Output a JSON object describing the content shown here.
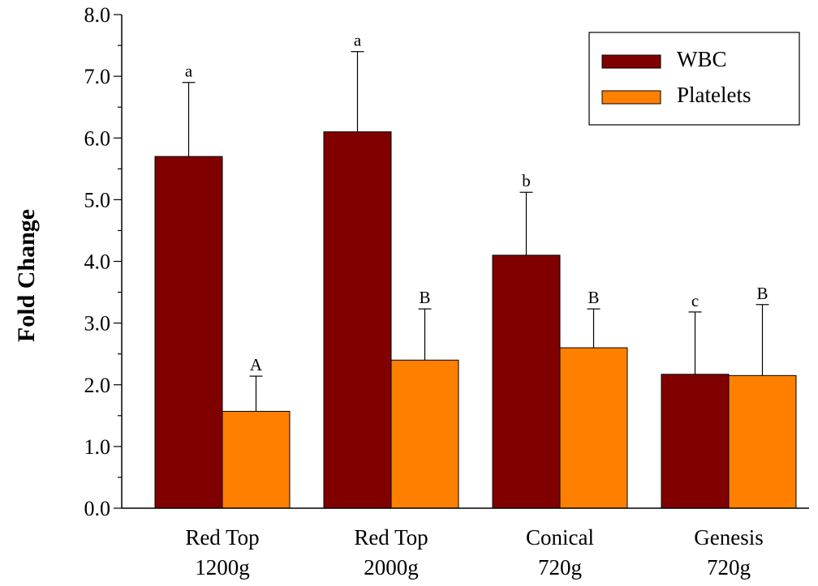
{
  "chart_data": {
    "type": "bar",
    "title": "",
    "xlabel": "",
    "ylabel": "Fold Change",
    "ylim": [
      0,
      8
    ],
    "ytick_labels": [
      "0.0",
      "1.0",
      "2.0",
      "3.0",
      "4.0",
      "5.0",
      "6.0",
      "7.0",
      "8.0"
    ],
    "categories": [
      [
        "Red Top",
        "1200g"
      ],
      [
        "Red Top",
        "2000g"
      ],
      [
        "Conical",
        "720g"
      ],
      [
        "Genesis",
        "720g"
      ]
    ],
    "series": [
      {
        "name": "WBC",
        "color": "#800000",
        "values": [
          5.7,
          6.1,
          4.1,
          2.17
        ],
        "error_upper": [
          6.9,
          7.4,
          5.12,
          3.18
        ],
        "significance": [
          "a",
          "a",
          "b",
          "c"
        ]
      },
      {
        "name": "Platelets",
        "color": "#ff8000",
        "values": [
          1.57,
          2.4,
          2.6,
          2.15
        ],
        "error_upper": [
          2.14,
          3.23,
          3.23,
          3.3
        ],
        "significance": [
          "A",
          "B",
          "B",
          "B"
        ]
      }
    ],
    "legend_position": "top-right",
    "grid": false
  }
}
